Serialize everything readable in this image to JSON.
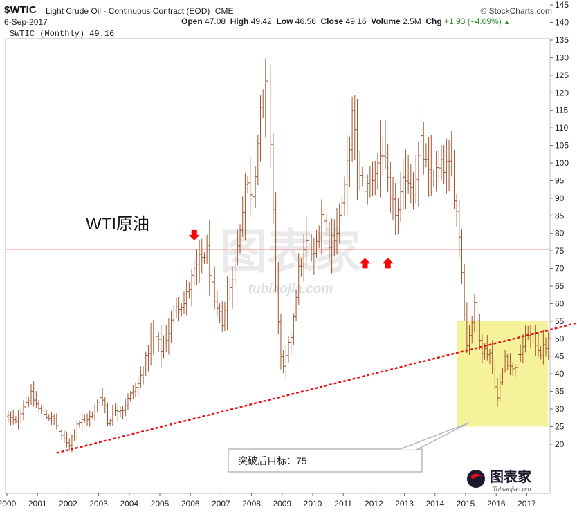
{
  "header": {
    "symbol": "$WTIC",
    "description": "Light Crude Oil - Continuous Contract (EOD)",
    "exchange": "CME",
    "brand": "© StockCharts.com",
    "date": "6-Sep-2017",
    "open_label": "Open",
    "open": "47.08",
    "high_label": "High",
    "high": "49.42",
    "low_label": "Low",
    "low": "46.56",
    "close_label": "Close",
    "close": "49.16",
    "volume_label": "Volume",
    "volume": "2.5M",
    "chg_label": "Chg",
    "chg": "+1.93 (+4.09%)",
    "chg_arrow": "▲"
  },
  "legend_text": "$WTIC (Monthly) 49.16",
  "annotations": {
    "title": "WTI原油",
    "callout": "突破后目标：75"
  },
  "watermarks": {
    "center": "图表家",
    "center_sub": "tubiaojia.com",
    "logo": "图表家",
    "logo_sub": "Tubiaojia.com"
  },
  "colors": {
    "bar": "#a0522d",
    "resistance_line": "#ff2020",
    "trendline": "#e81010",
    "highlight_fill": "#f4f08a",
    "arrow": "#ff0000",
    "grid": "#e8e8e8"
  },
  "chart_data": {
    "type": "ohlc",
    "frequency": "monthly",
    "series_name": "$WTIC (Monthly) 49.16",
    "x_range": [
      2000,
      2017.85
    ],
    "y_range": [
      17,
      148
    ],
    "y_ticks": [
      20,
      25,
      30,
      35,
      40,
      45,
      50,
      55,
      60,
      65,
      70,
      75,
      80,
      85,
      90,
      95,
      100,
      105,
      110,
      115,
      120,
      125,
      130,
      135,
      140,
      145
    ],
    "x_ticks": [
      "2000",
      "2001",
      "2002",
      "2003",
      "2004",
      "2005",
      "2006",
      "2007",
      "2008",
      "2009",
      "2010",
      "2011",
      "2012",
      "2013",
      "2014",
      "2015",
      "2016",
      "2017"
    ],
    "grid": false,
    "points": [
      {
        "date": "2000-01",
        "close": 28
      },
      {
        "date": "2000-04",
        "close": 26
      },
      {
        "date": "2000-07",
        "close": 31
      },
      {
        "date": "2000-10",
        "close": 34
      },
      {
        "date": "2001-01",
        "close": 30
      },
      {
        "date": "2001-04",
        "close": 28
      },
      {
        "date": "2001-07",
        "close": 27
      },
      {
        "date": "2001-10",
        "close": 22
      },
      {
        "date": "2002-01",
        "close": 20
      },
      {
        "date": "2002-04",
        "close": 26
      },
      {
        "date": "2002-07",
        "close": 27
      },
      {
        "date": "2002-10",
        "close": 28
      },
      {
        "date": "2003-01",
        "close": 34
      },
      {
        "date": "2003-03",
        "close": 31
      },
      {
        "date": "2003-04",
        "close": 26
      },
      {
        "date": "2003-07",
        "close": 30
      },
      {
        "date": "2003-10",
        "close": 30
      },
      {
        "date": "2004-01",
        "close": 34
      },
      {
        "date": "2004-04",
        "close": 37
      },
      {
        "date": "2004-07",
        "close": 44
      },
      {
        "date": "2004-10",
        "close": 52
      },
      {
        "date": "2005-01",
        "close": 47
      },
      {
        "date": "2005-04",
        "close": 52
      },
      {
        "date": "2005-07",
        "close": 60
      },
      {
        "date": "2005-10",
        "close": 60
      },
      {
        "date": "2006-01",
        "close": 67
      },
      {
        "date": "2006-04",
        "close": 72
      },
      {
        "date": "2006-07",
        "close": 75
      },
      {
        "date": "2006-10",
        "close": 59
      },
      {
        "date": "2007-01",
        "close": 55
      },
      {
        "date": "2007-04",
        "close": 65
      },
      {
        "date": "2007-07",
        "close": 76
      },
      {
        "date": "2007-10",
        "close": 94
      },
      {
        "date": "2008-01",
        "close": 92
      },
      {
        "date": "2008-04",
        "close": 113
      },
      {
        "date": "2008-07",
        "close": 124
      },
      {
        "date": "2008-10",
        "close": 68
      },
      {
        "date": "2008-12",
        "close": 44
      },
      {
        "date": "2009-01",
        "close": 41
      },
      {
        "date": "2009-04",
        "close": 51
      },
      {
        "date": "2009-07",
        "close": 69
      },
      {
        "date": "2009-10",
        "close": 77
      },
      {
        "date": "2010-01",
        "close": 73
      },
      {
        "date": "2010-04",
        "close": 86
      },
      {
        "date": "2010-07",
        "close": 78
      },
      {
        "date": "2010-10",
        "close": 81
      },
      {
        "date": "2011-01",
        "close": 92
      },
      {
        "date": "2011-04",
        "close": 113
      },
      {
        "date": "2011-07",
        "close": 95
      },
      {
        "date": "2011-10",
        "close": 93
      },
      {
        "date": "2012-01",
        "close": 98
      },
      {
        "date": "2012-04",
        "close": 104
      },
      {
        "date": "2012-07",
        "close": 88
      },
      {
        "date": "2012-10",
        "close": 86
      },
      {
        "date": "2013-01",
        "close": 97
      },
      {
        "date": "2013-04",
        "close": 93
      },
      {
        "date": "2013-07",
        "close": 105
      },
      {
        "date": "2013-10",
        "close": 96
      },
      {
        "date": "2014-01",
        "close": 97
      },
      {
        "date": "2014-04",
        "close": 99
      },
      {
        "date": "2014-07",
        "close": 98
      },
      {
        "date": "2014-10",
        "close": 80
      },
      {
        "date": "2015-01",
        "close": 48
      },
      {
        "date": "2015-04",
        "close": 59
      },
      {
        "date": "2015-07",
        "close": 47
      },
      {
        "date": "2015-10",
        "close": 46
      },
      {
        "date": "2016-01",
        "close": 33
      },
      {
        "date": "2016-04",
        "close": 45
      },
      {
        "date": "2016-07",
        "close": 41
      },
      {
        "date": "2016-10",
        "close": 46
      },
      {
        "date": "2017-01",
        "close": 52
      },
      {
        "date": "2017-04",
        "close": 49
      },
      {
        "date": "2017-06",
        "close": 46
      },
      {
        "date": "2017-09",
        "close": 49.16
      }
    ],
    "resistance_level": 75.5,
    "trendline": {
      "start": {
        "date": "2001-08",
        "value": 17.5
      },
      "end": {
        "date": "2017-12",
        "value": 53
      }
    },
    "highlight_zone": {
      "x_start": "2014-10",
      "x_end": "2017-08",
      "y_low": 25,
      "y_high": 55
    },
    "markers": [
      {
        "type": "down-arrow",
        "date": "2006-02",
        "value": 78
      },
      {
        "type": "up-arrow",
        "date": "2011-09",
        "value": 73
      },
      {
        "type": "up-arrow",
        "date": "2012-06",
        "value": 73
      }
    ]
  }
}
